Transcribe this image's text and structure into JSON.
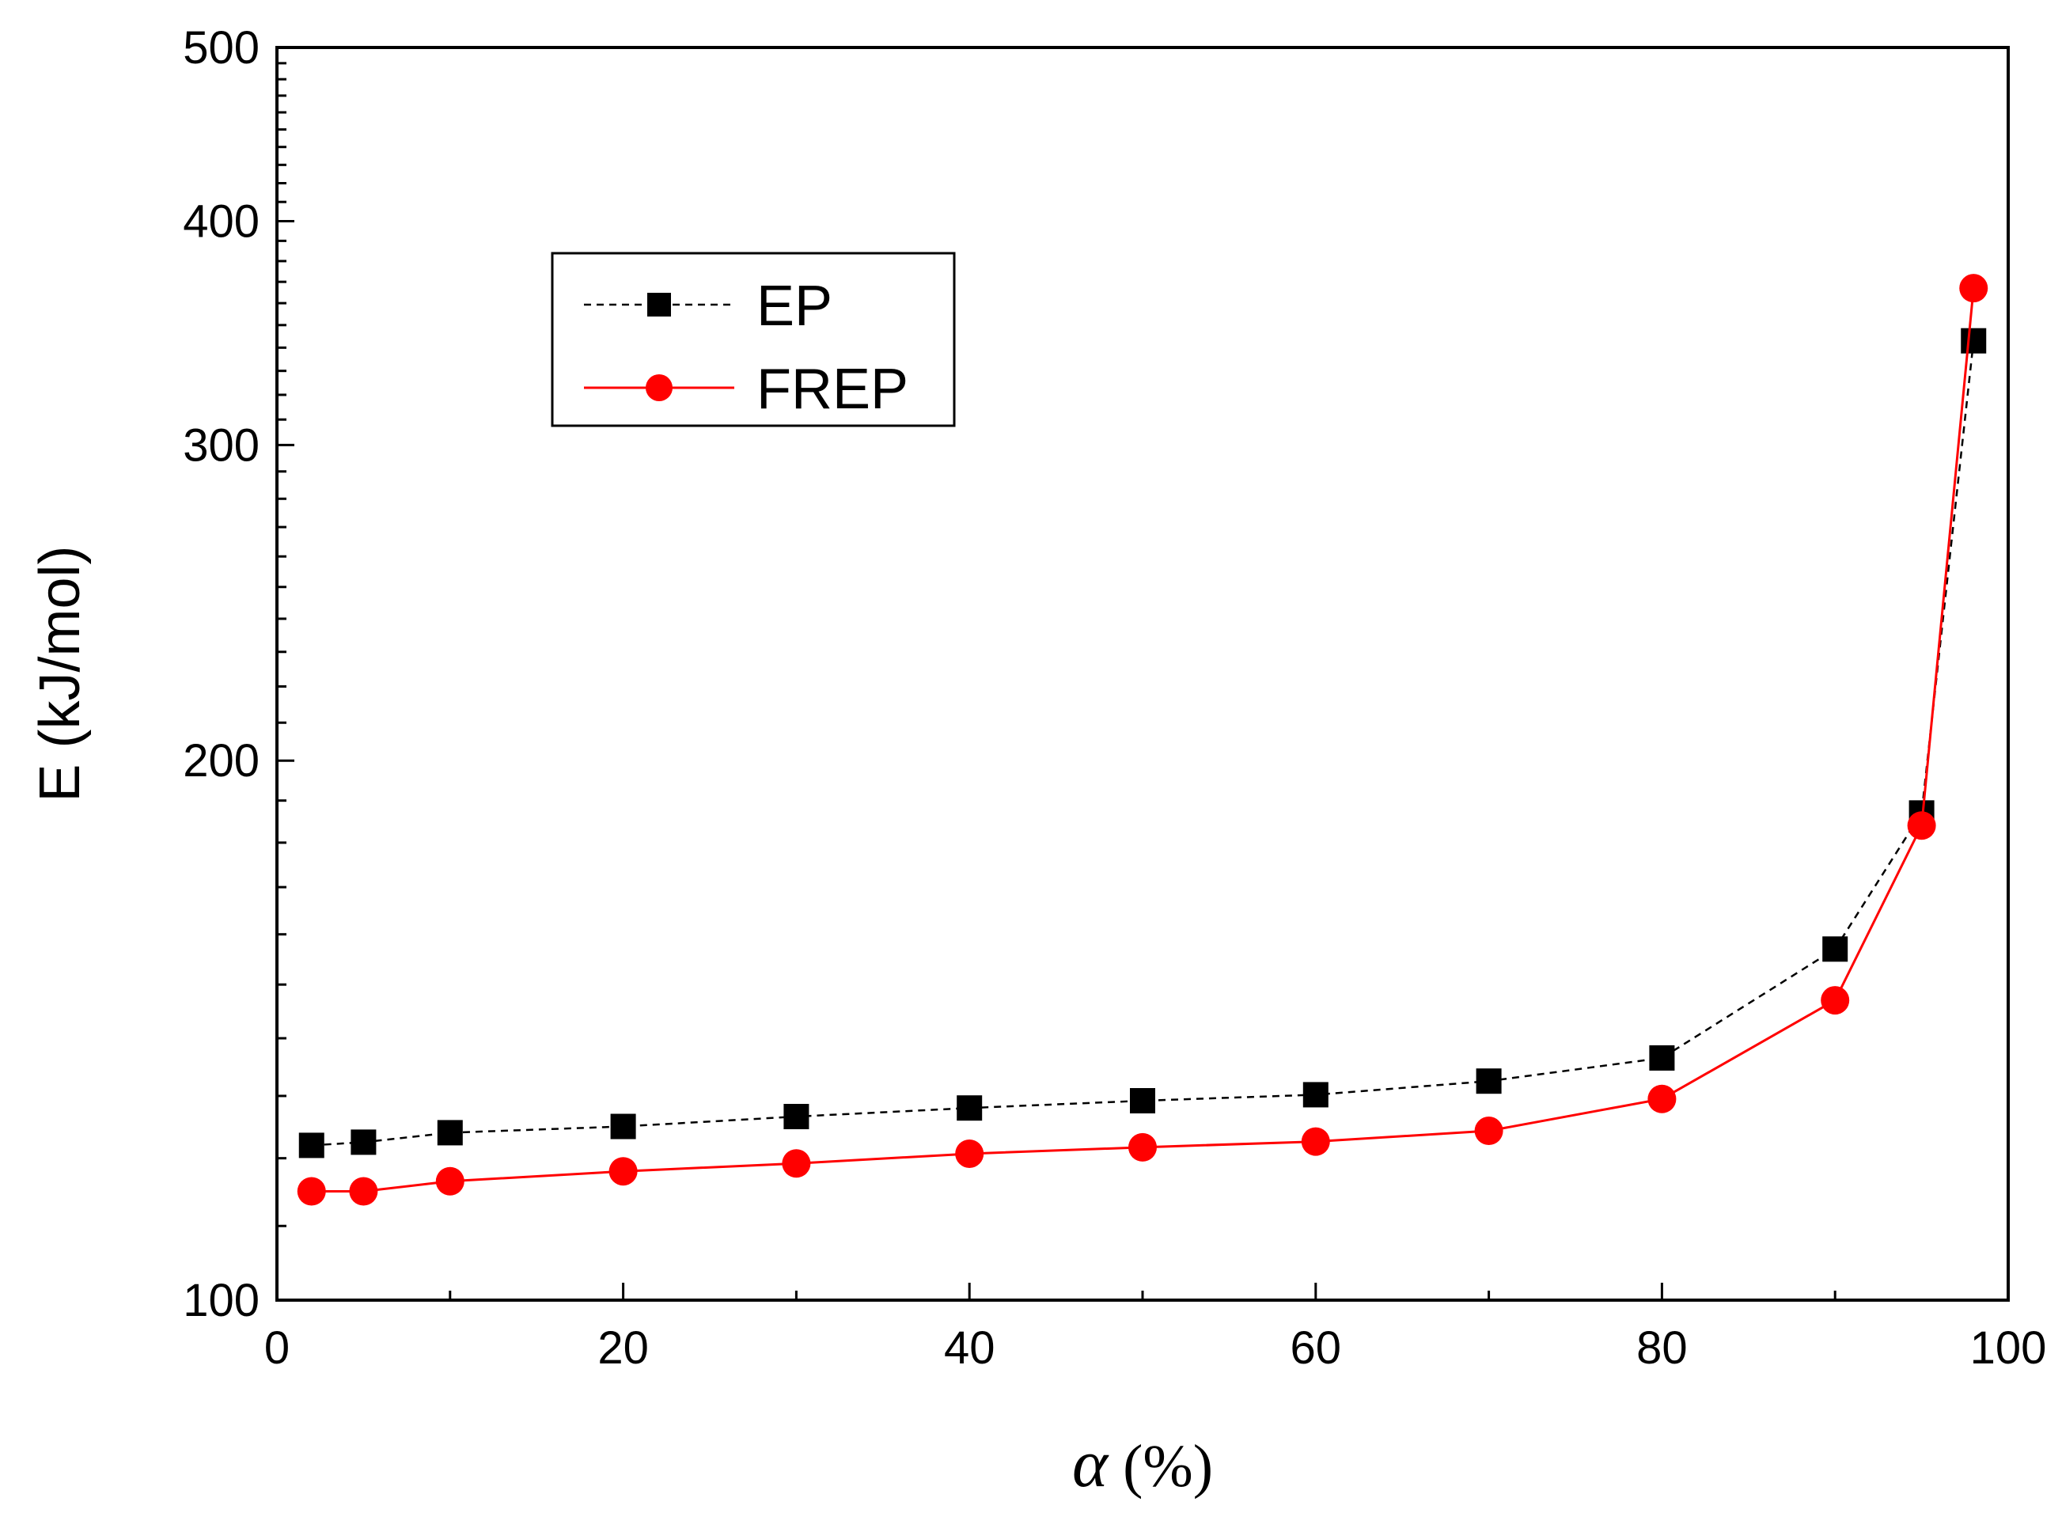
{
  "chart_data": {
    "type": "line",
    "title": "",
    "xlabel": "α (%)",
    "ylabel": "E (kJ/mol)",
    "xlim": [
      0,
      100
    ],
    "ylim": [
      100,
      500
    ],
    "yscale": "log",
    "x_ticks": [
      "0",
      "20",
      "40",
      "60",
      "80",
      "100"
    ],
    "y_ticks": [
      "100",
      "200",
      "300",
      "400",
      "500"
    ],
    "legend_position": "top-left",
    "series": [
      {
        "name": "EP",
        "color": "#000000",
        "line_style": "dashed",
        "marker": "square",
        "x": [
          2,
          5,
          10,
          20,
          30,
          40,
          50,
          60,
          70,
          80,
          90,
          95,
          98
        ],
        "y": [
          122,
          122.5,
          124,
          125,
          126.6,
          128,
          129.2,
          130.2,
          132.5,
          136.5,
          157,
          187,
          343
        ]
      },
      {
        "name": "FREP",
        "color": "#ff0000",
        "line_style": "solid",
        "marker": "circle",
        "x": [
          2,
          5,
          10,
          20,
          30,
          40,
          50,
          60,
          70,
          80,
          90,
          95,
          98
        ],
        "y": [
          115,
          115,
          116.5,
          118,
          119.2,
          120.7,
          121.7,
          122.6,
          124.3,
          129.5,
          147,
          184,
          367
        ]
      }
    ]
  }
}
